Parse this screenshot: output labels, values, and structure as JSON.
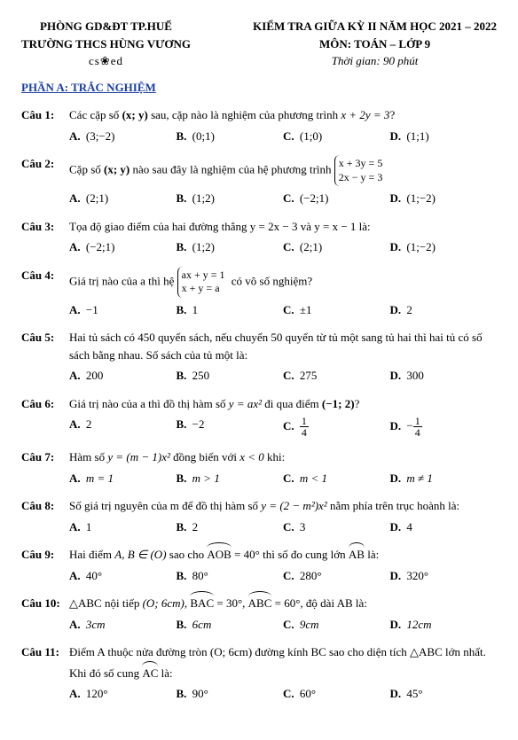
{
  "header": {
    "dept": "PHÒNG GD&ĐT TP.HUẾ",
    "school": "TRƯỜNG THCS HÙNG VƯƠNG",
    "ornament": "cs❀ed",
    "title1": "KIỂM TRA GIỮA KỲ II NĂM HỌC 2021 – 2022",
    "title2": "MÔN: TOÁN – LỚP 9",
    "duration": "Thời gian: 90 phút"
  },
  "section_a": "PHẦN A: TRẮC NGHIỆM",
  "questions": [
    {
      "label": "Câu 1:",
      "stem_pre": "Các cặp số ",
      "stem_math": "(x; y)",
      "stem_post": " sau, cặp nào là nghiệm của phương trình ",
      "stem_eq": "x + 2y = 3",
      "stem_end": "?",
      "opts": [
        "(3;−2)",
        "(0;1)",
        "(1;0)",
        "(1;1)"
      ]
    },
    {
      "label": "Câu 2:",
      "stem_pre": "Cặp số ",
      "stem_math": "(x; y)",
      "stem_post": " nào sau đây là nghiệm của hệ phương trình ",
      "system": [
        "x + 3y = 5",
        "2x − y = 3"
      ],
      "opts": [
        "(2;1)",
        "(1;2)",
        "(−2;1)",
        "(1;−2)"
      ]
    },
    {
      "label": "Câu 3:",
      "stem_full": "Tọa độ giao điểm của hai đường thẳng  y = 2x − 3  và  y = x − 1 là:",
      "opts": [
        "(−2;1)",
        "(1;2)",
        "(2;1)",
        "(1;−2)"
      ]
    },
    {
      "label": "Câu 4:",
      "stem_pre": "Giá trị nào của a thì hệ ",
      "system": [
        "ax + y = 1",
        "x + y = a"
      ],
      "stem_post": " có vô số nghiệm?",
      "opts": [
        "−1",
        "1",
        "±1",
        "2"
      ]
    },
    {
      "label": "Câu 5:",
      "stem_full": "Hai tủ sách có 450 quyển sách, nếu chuyển 50 quyển từ tủ một sang tủ hai thì hai tủ có số sách bằng nhau. Số sách của tủ một là:",
      "opts": [
        "200",
        "250",
        "275",
        "300"
      ]
    },
    {
      "label": "Câu 6:",
      "stem_pre": "Giá trị nào của a thì đồ thị hàm số ",
      "stem_eq": "y = ax²",
      "stem_post": " đi qua điểm ",
      "stem_pt": "(−1; 2)",
      "stem_end": "?",
      "opts_frac": [
        {
          "plain": "2"
        },
        {
          "plain": "−2"
        },
        {
          "frac_n": "1",
          "frac_d": "4"
        },
        {
          "neg": "−",
          "frac_n": "1",
          "frac_d": "4"
        }
      ]
    },
    {
      "label": "Câu 7:",
      "stem_pre": "Hàm số ",
      "stem_eq": "y = (m − 1)x²",
      "stem_post": " đồng biến với ",
      "stem_cond": "x < 0",
      "stem_end": " khi:",
      "opts": [
        "m = 1",
        "m > 1",
        "m < 1",
        "m ≠ 1"
      ]
    },
    {
      "label": "Câu 8:",
      "stem_pre": "Số giá trị nguyên của m để đồ thị hàm số ",
      "stem_eq": "y = (2 − m²)x²",
      "stem_post": " nằm phía trên trục hoành là:",
      "opts": [
        "1",
        "2",
        "3",
        "4"
      ]
    },
    {
      "label": "Câu 9:",
      "stem_pre": "Hai điểm ",
      "stem_math1": "A, B ∈ (O)",
      "stem_mid": " sao cho ",
      "arc1": "AOB",
      "eq1": " = 40°",
      "stem_post": " thì số đo cung lớn ",
      "arc2": "AB",
      "stem_end": " là:",
      "opts": [
        "40°",
        "80°",
        "280°",
        "320°"
      ]
    },
    {
      "label": "Câu 10:",
      "stem_pre": "△ABC nội tiếp ",
      "stem_math1": "(O; 6cm)",
      "sep1": ", ",
      "arc1": "BAC",
      "eq1": " = 30°",
      "sep2": ", ",
      "arc2": "ABC",
      "eq2": " = 60°",
      "stem_post": ", độ dài AB là:",
      "opts": [
        "3cm",
        "6cm",
        "9cm",
        "12cm"
      ]
    },
    {
      "label": "Câu 11:",
      "stem_full": "Điểm A thuộc nửa đường tròn (O; 6cm) đường kính BC sao cho diện tích △ABC lớn nhất.",
      "stem_line2_pre": "Khi đó số cung ",
      "arc": "AC",
      "stem_line2_post": " là:",
      "opts": [
        "120°",
        "90°",
        "60°",
        "45°"
      ]
    }
  ],
  "opt_letters": [
    "A.",
    "B.",
    "C.",
    "D."
  ]
}
